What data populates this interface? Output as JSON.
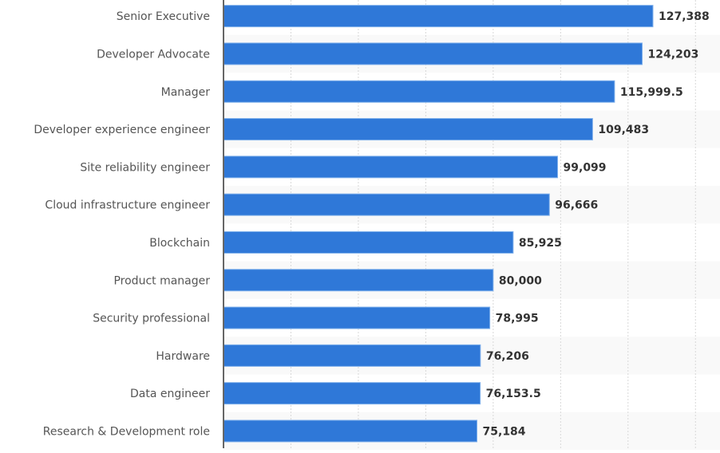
{
  "chart_data": {
    "type": "bar",
    "orientation": "horizontal",
    "title": "",
    "xlabel": "",
    "ylabel": "",
    "categories": [
      "Senior Executive",
      "Developer Advocate",
      "Manager",
      "Developer experience engineer",
      "Site reliability engineer",
      "Cloud infrastructure engineer",
      "Blockchain",
      "Product manager",
      "Security professional",
      "Hardware",
      "Data engineer",
      "Research & Development role"
    ],
    "values": [
      127388,
      124203,
      115999.5,
      109483,
      99099,
      96666,
      85925,
      80000,
      78995,
      76206,
      76153.5,
      75184
    ],
    "value_labels": [
      "127,388",
      "124,203",
      "115,999.5",
      "109,483",
      "99,099",
      "96,666",
      "85,925",
      "80,000",
      "78,995",
      "76,206",
      "76,153.5",
      "75,184"
    ],
    "xlim": [
      0,
      147000
    ],
    "grid_step": 20000,
    "grid": true,
    "legend": "none",
    "colors": {
      "bar": "#2f78d8",
      "bar_edge": "#7fb0ec",
      "alt_row": "#f9f9f9",
      "grid": "#d8d8d8",
      "axis": "#666666"
    }
  }
}
